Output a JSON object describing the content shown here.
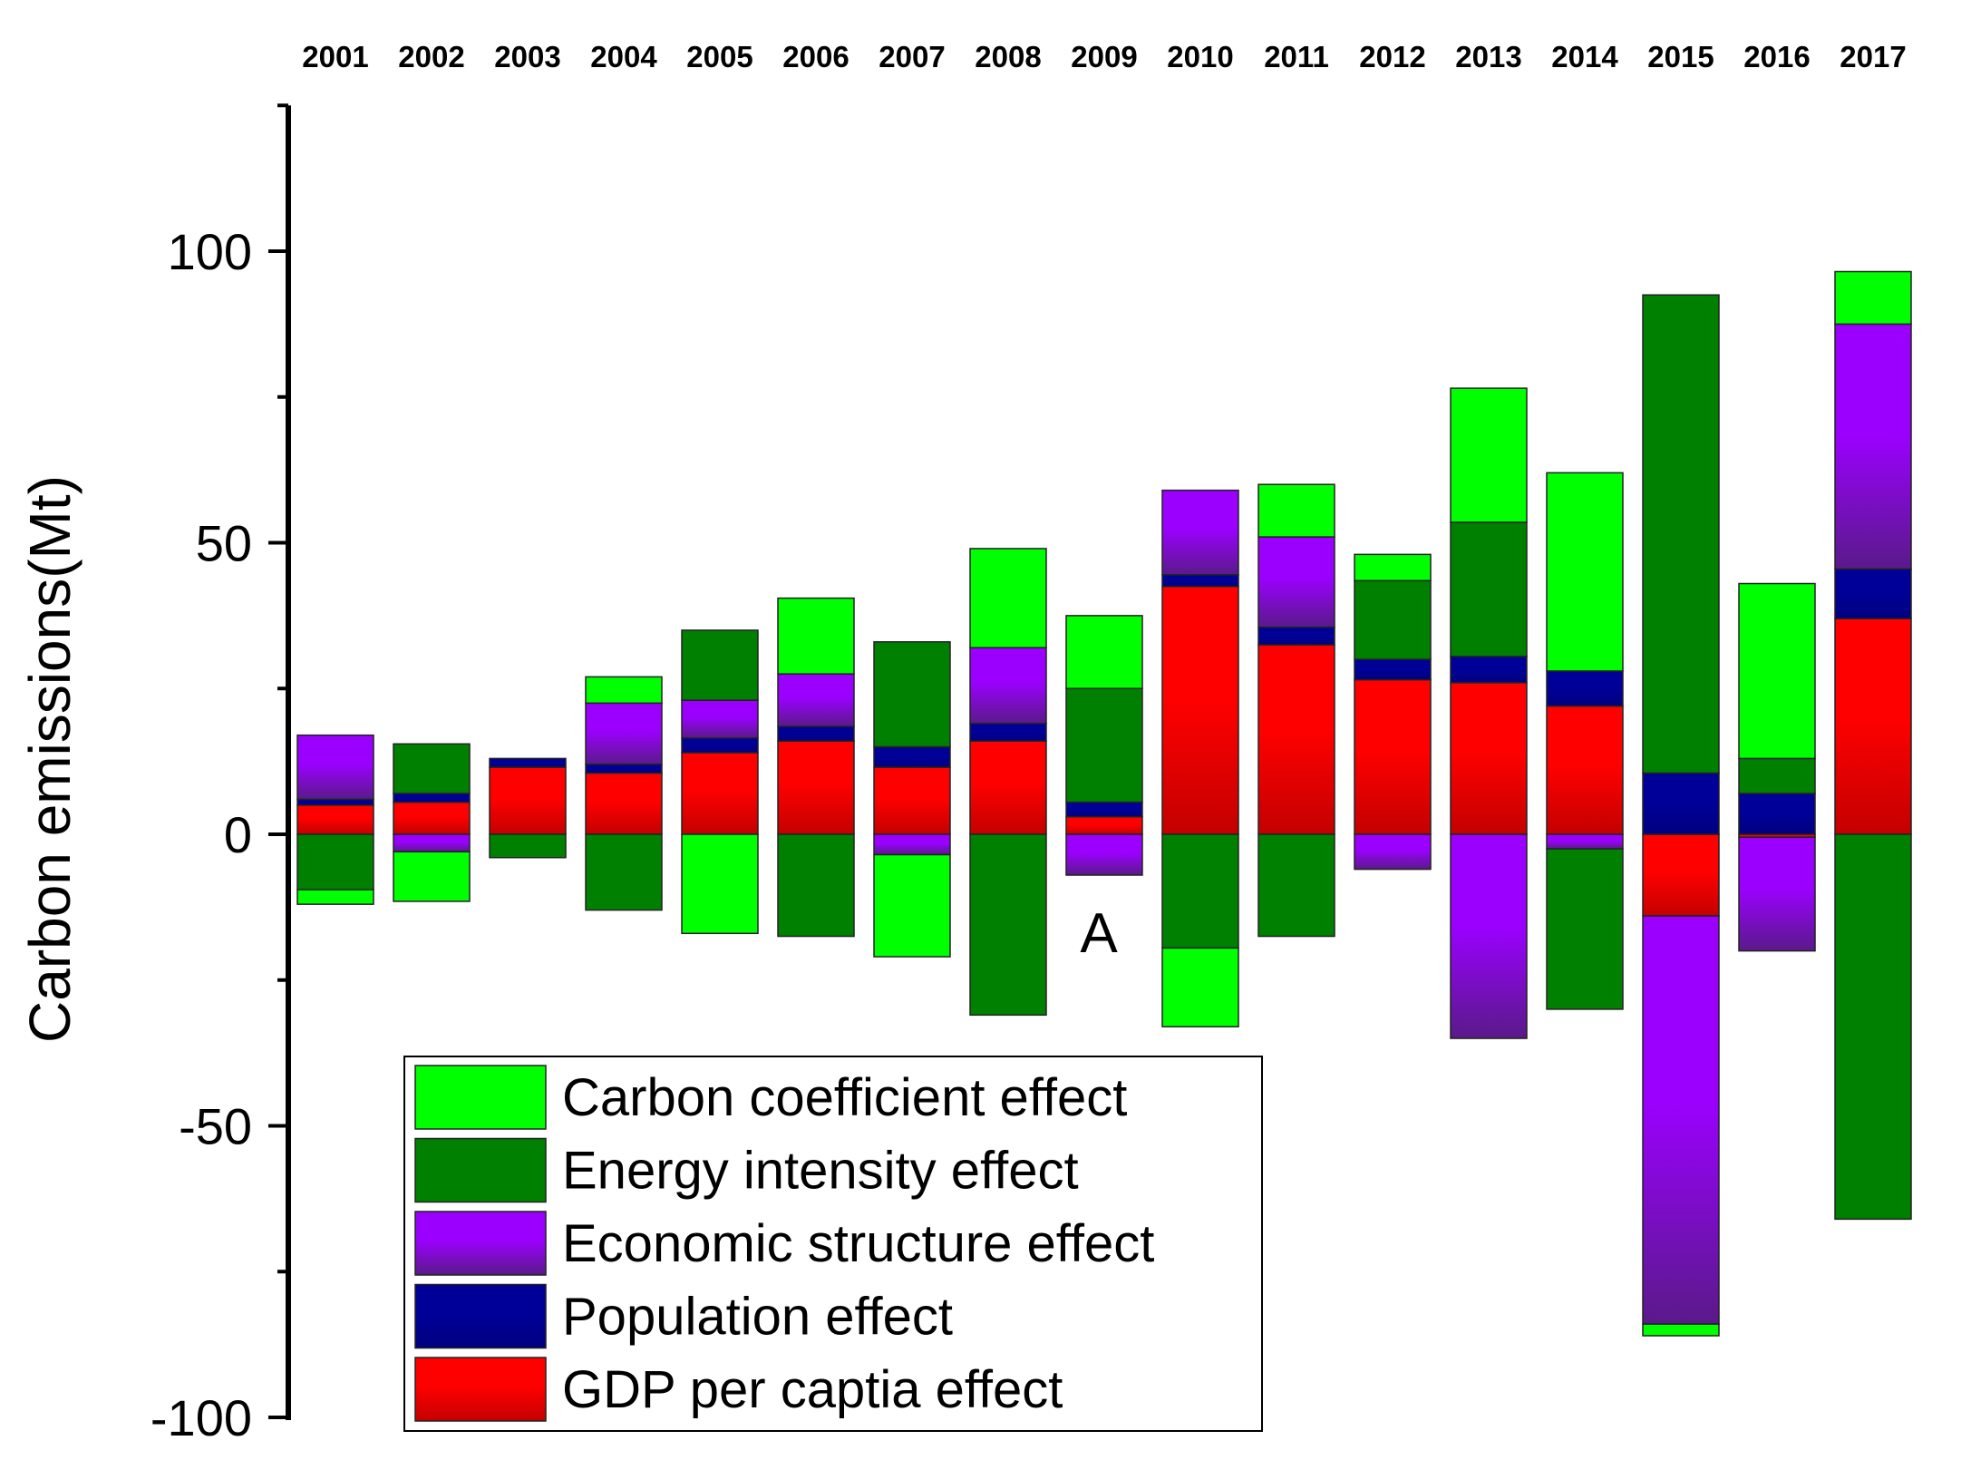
{
  "chart_data": {
    "type": "bar",
    "stacked": true,
    "title": "",
    "xlabel": "",
    "ylabel": "Carbon emissions(Mt)",
    "ylim": [
      -100,
      125
    ],
    "yticks": [
      100,
      50,
      0,
      -50,
      -100
    ],
    "ytick_labels": [
      "100",
      "50",
      "0",
      "-50",
      "-100"
    ],
    "categories": [
      "2001",
      "2002",
      "2003",
      "2004",
      "2005",
      "2006",
      "2007",
      "2008",
      "2009",
      "2010",
      "2011",
      "2012",
      "2013",
      "2014",
      "2015",
      "2016",
      "2017"
    ],
    "annotation": "A",
    "legend_position": "bottom-left",
    "series": [
      {
        "name": "GDP per captia effect",
        "key": "gdp",
        "color": "#ff0000",
        "color_dark": "#c40000",
        "values": [
          5,
          5.5,
          11.5,
          10.5,
          14,
          16,
          11.5,
          16,
          3,
          42.5,
          32.5,
          26.5,
          26,
          22,
          -14,
          -0.5,
          37
        ]
      },
      {
        "name": "Population effect",
        "key": "pop",
        "color": "#000099",
        "color_dark": "#000080",
        "values": [
          1,
          1.5,
          1.5,
          1.5,
          2.5,
          2.5,
          3.5,
          3,
          2.5,
          2,
          3,
          3.5,
          4.5,
          6,
          10.5,
          7,
          8.5
        ]
      },
      {
        "name": "Economic structure effect",
        "key": "econ",
        "color": "#9b00ff",
        "color_dark": "#5a1a8a",
        "values": [
          11,
          -3,
          0,
          10.5,
          6.5,
          9,
          -3.5,
          13,
          -7,
          14.5,
          15.5,
          -6,
          -35,
          -2.5,
          -70,
          -19.5,
          42
        ]
      },
      {
        "name": "Energy intensity effect",
        "key": "energy",
        "color": "#008000",
        "color_dark": "#008000",
        "values": [
          -9.5,
          8.5,
          -4,
          -13,
          12,
          -17.5,
          18,
          -31,
          19.5,
          -19.5,
          -17.5,
          13.5,
          23,
          -27.5,
          82,
          6,
          -66
        ]
      },
      {
        "name": "Carbon coefficient effect",
        "key": "carbon",
        "color": "#00ff00",
        "color_dark": "#00ff00",
        "values": [
          -2.5,
          -8.5,
          0,
          4.5,
          -17,
          13,
          -17.5,
          17,
          12.5,
          -13.5,
          9,
          4.5,
          23,
          34,
          -2,
          30,
          9
        ]
      }
    ],
    "legend_order": [
      "carbon",
      "energy",
      "econ",
      "pop",
      "gdp"
    ]
  }
}
